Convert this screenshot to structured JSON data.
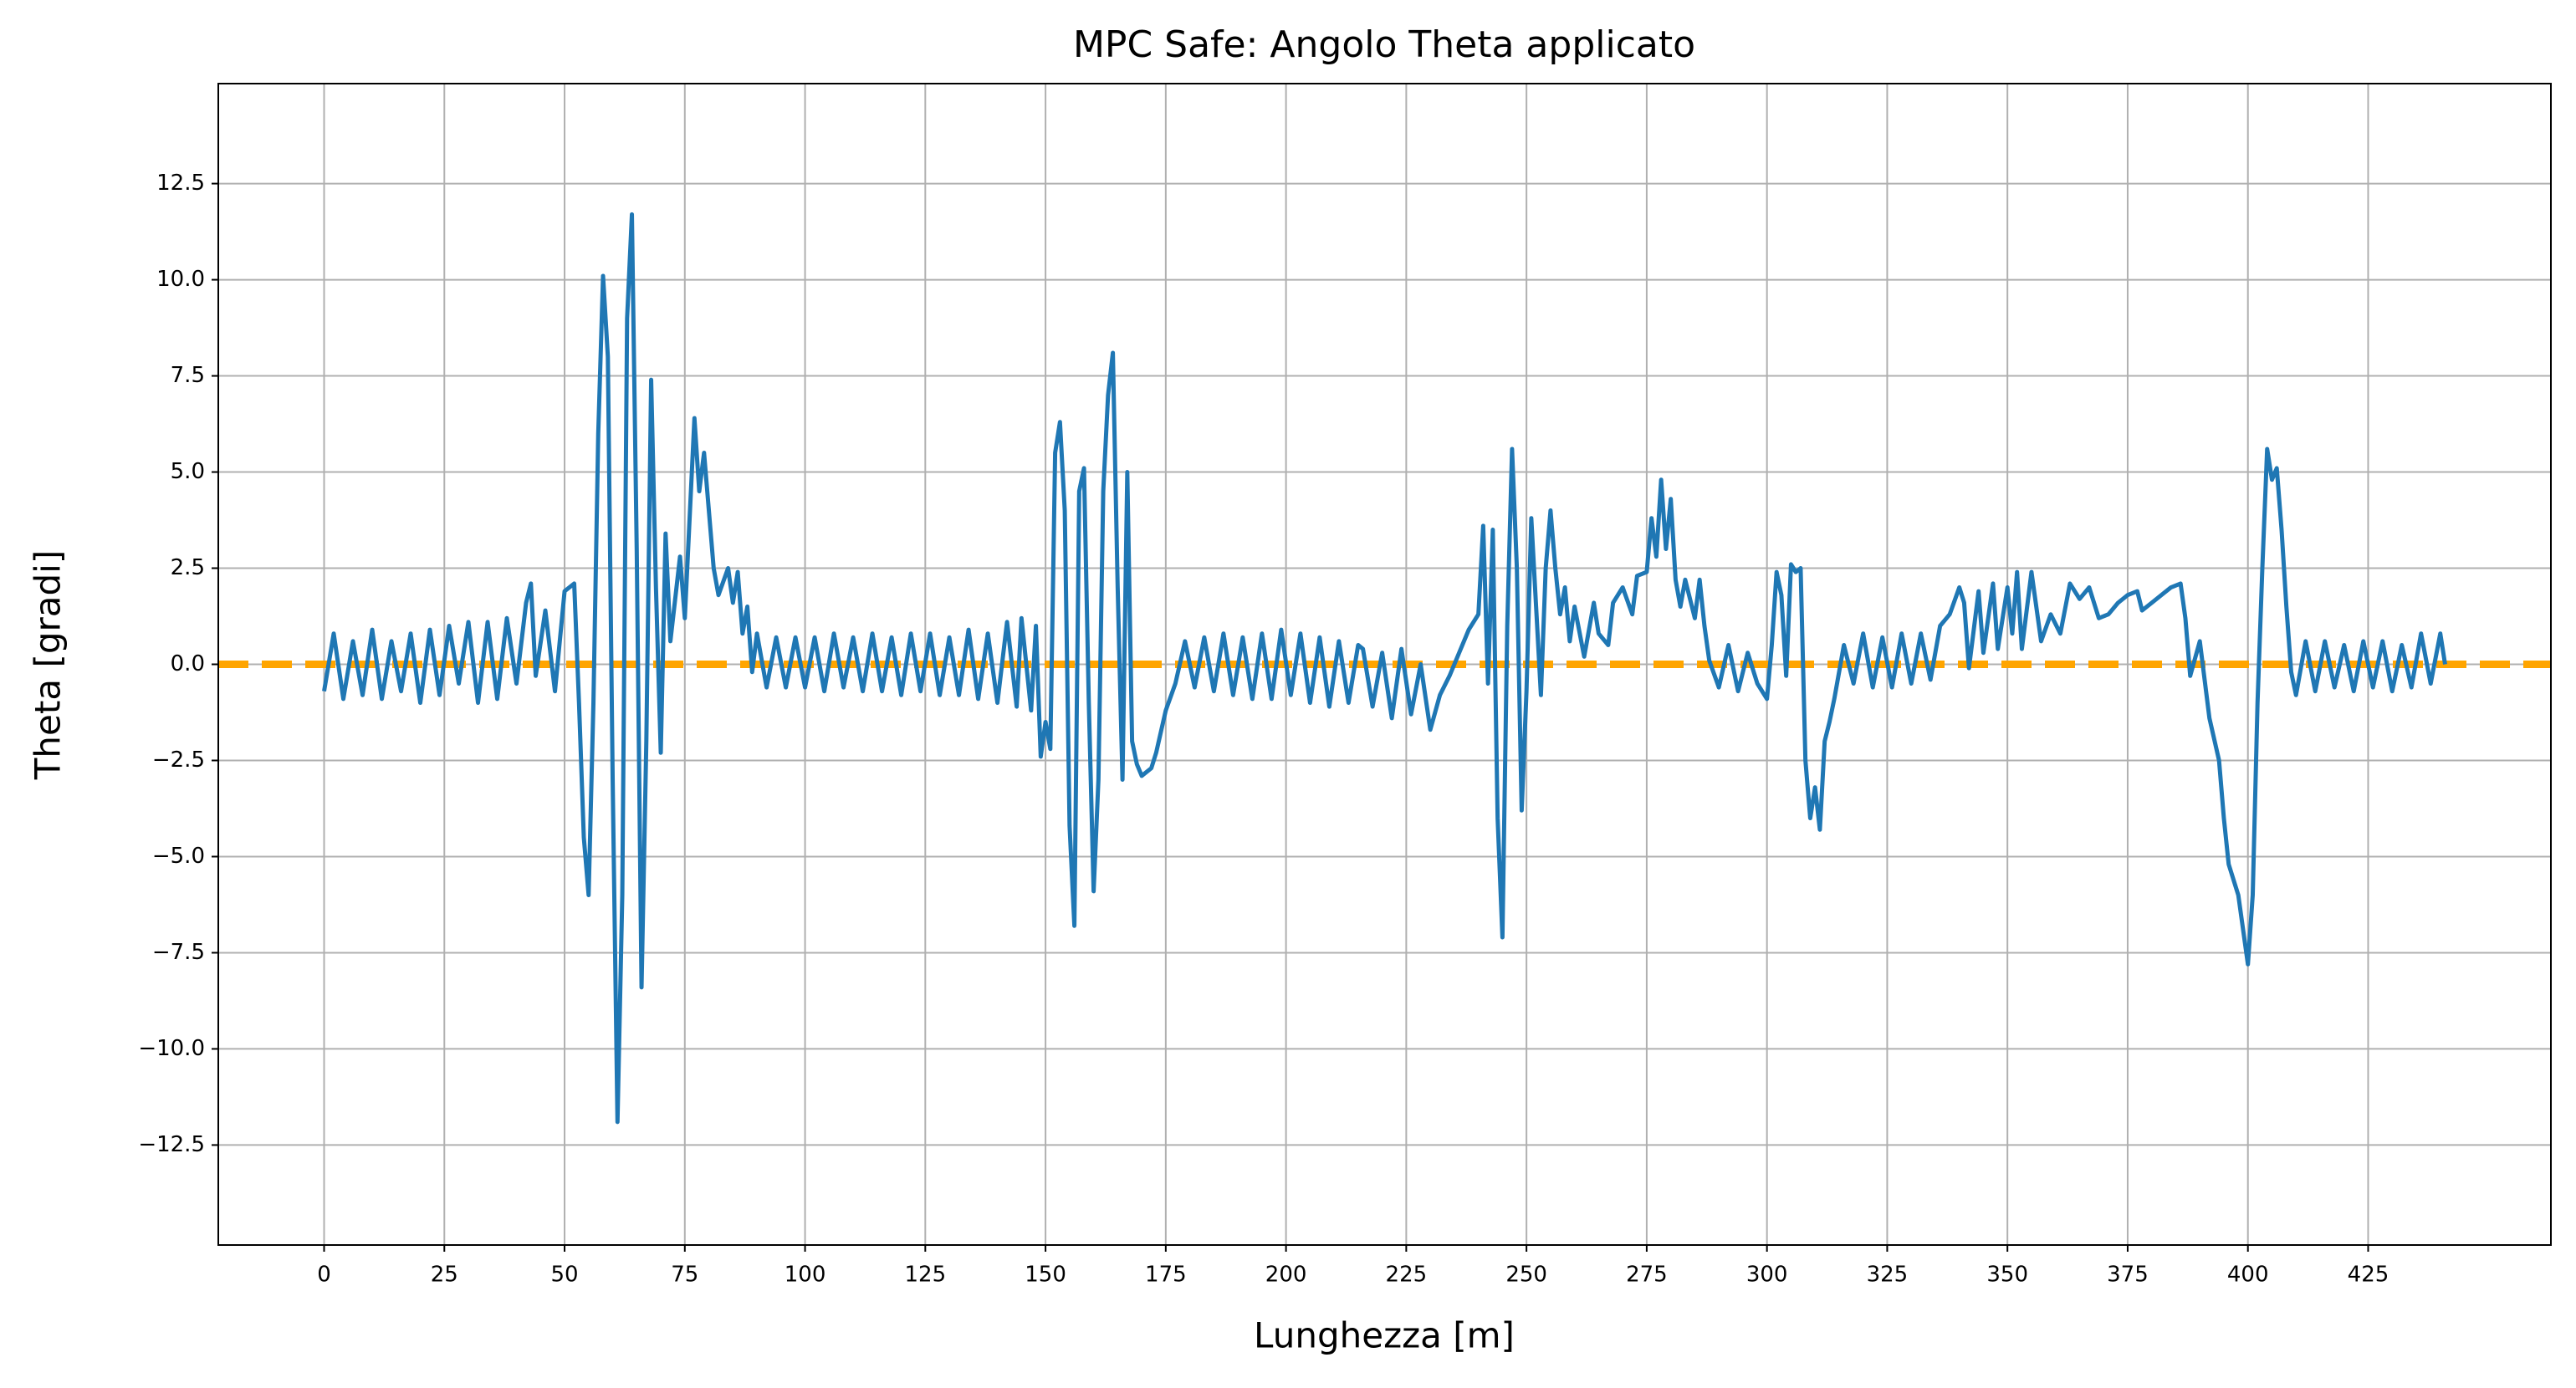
{
  "chart_data": {
    "type": "line",
    "title": "MPC Safe: Angolo Theta applicato",
    "x_label": "Lunghezza [m]",
    "y_label": "Theta [gradi]",
    "xlim": [
      -22,
      463
    ],
    "ylim": [
      -15.1,
      15.1
    ],
    "xticks": [
      0,
      25,
      50,
      75,
      100,
      125,
      150,
      175,
      200,
      225,
      250,
      275,
      300,
      325,
      350,
      375,
      400,
      425
    ],
    "yticks": [
      {
        "value": -12.5,
        "label": "−12.5"
      },
      {
        "value": -10,
        "label": "−10.0"
      },
      {
        "value": -7.5,
        "label": "−7.5"
      },
      {
        "value": -5,
        "label": "−5.0"
      },
      {
        "value": -2.5,
        "label": "−2.5"
      },
      {
        "value": 0,
        "label": "0.0"
      },
      2.5,
      {
        "value": 5,
        "label": "5.0"
      },
      7.5,
      {
        "value": 10,
        "label": "10.0"
      },
      12.5
    ],
    "grid": true,
    "reference_line": {
      "value": 0,
      "color": "#ffa500",
      "style": "dashed"
    },
    "series": [
      {
        "color": "#1f77b4",
        "x": [
          0,
          2,
          4,
          6,
          8,
          10,
          12,
          14,
          16,
          18,
          20,
          22,
          24,
          26,
          28,
          30,
          32,
          34,
          36,
          38,
          40,
          42,
          43,
          44,
          46,
          48,
          50,
          52,
          53,
          54,
          55,
          56,
          57,
          58,
          59,
          60,
          61,
          62,
          63,
          64,
          65,
          66,
          67,
          68,
          69,
          70,
          71,
          72,
          74,
          75,
          77,
          78,
          79,
          80,
          81,
          82,
          84,
          85,
          86,
          87,
          88,
          89,
          90,
          92,
          94,
          96,
          98,
          100,
          102,
          104,
          106,
          108,
          110,
          112,
          114,
          116,
          118,
          120,
          122,
          124,
          126,
          128,
          130,
          132,
          134,
          136,
          138,
          140,
          142,
          144,
          145,
          147,
          148,
          149,
          150,
          151,
          152,
          153,
          154,
          155,
          156,
          157,
          158,
          159,
          160,
          161,
          162,
          163,
          164,
          165,
          166,
          167,
          168,
          169,
          170,
          172,
          173,
          175,
          177,
          179,
          181,
          183,
          185,
          187,
          189,
          191,
          193,
          195,
          197,
          199,
          201,
          203,
          205,
          207,
          209,
          211,
          213,
          215,
          216,
          218,
          220,
          222,
          224,
          226,
          228,
          230,
          232,
          234,
          236,
          238,
          240,
          241,
          242,
          243,
          244,
          245,
          246,
          247,
          248,
          249,
          250,
          251,
          252,
          253,
          254,
          255,
          256,
          257,
          258,
          259,
          260,
          262,
          264,
          265,
          267,
          268,
          270,
          272,
          273,
          275,
          276,
          277,
          278,
          279,
          280,
          281,
          282,
          283,
          285,
          286,
          287,
          288,
          290,
          292,
          294,
          296,
          298,
          300,
          301,
          302,
          303,
          304,
          305,
          306,
          307,
          308,
          309,
          310,
          311,
          312,
          313,
          314,
          316,
          318,
          320,
          322,
          324,
          326,
          328,
          330,
          332,
          334,
          336,
          338,
          340,
          341,
          342,
          344,
          345,
          347,
          348,
          350,
          351,
          352,
          353,
          355,
          357,
          359,
          361,
          363,
          365,
          367,
          369,
          371,
          373,
          375,
          377,
          378,
          380,
          382,
          384,
          386,
          387,
          388,
          390,
          392,
          394,
          395,
          396,
          398,
          400,
          401,
          402,
          403,
          404,
          405,
          406,
          407,
          408,
          409,
          410,
          412,
          414,
          416,
          418,
          420,
          422,
          424,
          426,
          428,
          430,
          432,
          434,
          436,
          438,
          440,
          441
        ],
        "values": [
          -0.7,
          0.8,
          -0.9,
          0.6,
          -0.8,
          0.9,
          -0.9,
          0.6,
          -0.7,
          0.8,
          -1,
          0.9,
          -0.8,
          1,
          -0.5,
          1.1,
          -1,
          1.1,
          -0.9,
          1.2,
          -0.5,
          1.6,
          2.1,
          -0.3,
          1.4,
          -0.7,
          1.9,
          2.1,
          -1,
          -4.5,
          -6,
          -1,
          6,
          10.1,
          8,
          -3,
          -11.9,
          -6,
          9,
          11.7,
          3,
          -8.4,
          -2,
          7.4,
          2,
          -2.3,
          3.4,
          0.6,
          2.8,
          1.2,
          6.4,
          4.5,
          5.5,
          4,
          2.5,
          1.8,
          2.5,
          1.6,
          2.4,
          0.8,
          1.5,
          -0.2,
          0.8,
          -0.6,
          0.7,
          -0.6,
          0.7,
          -0.6,
          0.7,
          -0.7,
          0.8,
          -0.6,
          0.7,
          -0.7,
          0.8,
          -0.7,
          0.7,
          -0.8,
          0.8,
          -0.7,
          0.8,
          -0.8,
          0.7,
          -0.8,
          0.9,
          -0.9,
          0.8,
          -1,
          1.1,
          -1.1,
          1.2,
          -1.2,
          1,
          -2.4,
          -1.5,
          -2.2,
          5.5,
          6.3,
          4,
          -4.2,
          -6.8,
          4.5,
          5.1,
          -1,
          -5.9,
          -3,
          4.5,
          7,
          8.1,
          2,
          -3,
          5,
          -2,
          -2.6,
          -2.9,
          -2.7,
          -2.3,
          -1.2,
          -0.5,
          0.6,
          -0.6,
          0.7,
          -0.7,
          0.8,
          -0.8,
          0.7,
          -0.9,
          0.8,
          -0.9,
          0.9,
          -0.8,
          0.8,
          -1,
          0.7,
          -1.1,
          0.6,
          -1,
          0.5,
          0.4,
          -1.1,
          0.3,
          -1.4,
          0.4,
          -1.3,
          0,
          -1.7,
          -0.8,
          -0.3,
          0.3,
          0.9,
          1.3,
          3.6,
          -0.5,
          3.5,
          -4,
          -7.1,
          1,
          5.6,
          2.5,
          -3.8,
          -0.7,
          3.8,
          1.5,
          -0.8,
          2.5,
          4,
          2.5,
          1.3,
          2,
          0.6,
          1.5,
          0.2,
          1.6,
          0.8,
          0.5,
          1.6,
          2,
          1.3,
          2.3,
          2.4,
          3.8,
          2.8,
          4.8,
          3,
          4.3,
          2.2,
          1.5,
          2.2,
          1.2,
          2.2,
          1,
          0.1,
          -0.6,
          0.5,
          -0.7,
          0.3,
          -0.5,
          -0.9,
          0.5,
          2.4,
          1.8,
          -0.3,
          2.6,
          2.4,
          2.5,
          -2.5,
          -4,
          -3.2,
          -4.3,
          -2,
          -1.5,
          -0.9,
          0.5,
          -0.5,
          0.8,
          -0.6,
          0.7,
          -0.6,
          0.8,
          -0.5,
          0.8,
          -0.4,
          1,
          1.3,
          2,
          1.6,
          -0.1,
          1.9,
          0.3,
          2.1,
          0.4,
          2,
          0.8,
          2.4,
          0.4,
          2.4,
          0.6,
          1.3,
          0.8,
          2.1,
          1.7,
          2,
          1.2,
          1.3,
          1.6,
          1.8,
          1.9,
          1.4,
          1.6,
          1.8,
          2,
          2.1,
          1.2,
          -0.3,
          0.6,
          -1.4,
          -2.5,
          -4,
          -5.2,
          -6,
          -7.8,
          -6,
          -1,
          2.5,
          5.6,
          4.8,
          5.1,
          3.5,
          1.5,
          -0.2,
          -0.8,
          0.6,
          -0.7,
          0.6,
          -0.6,
          0.5,
          -0.7,
          0.6,
          -0.6,
          0.6,
          -0.7,
          0.5,
          -0.6,
          0.8,
          -0.5,
          0.8,
          0
        ]
      }
    ]
  }
}
